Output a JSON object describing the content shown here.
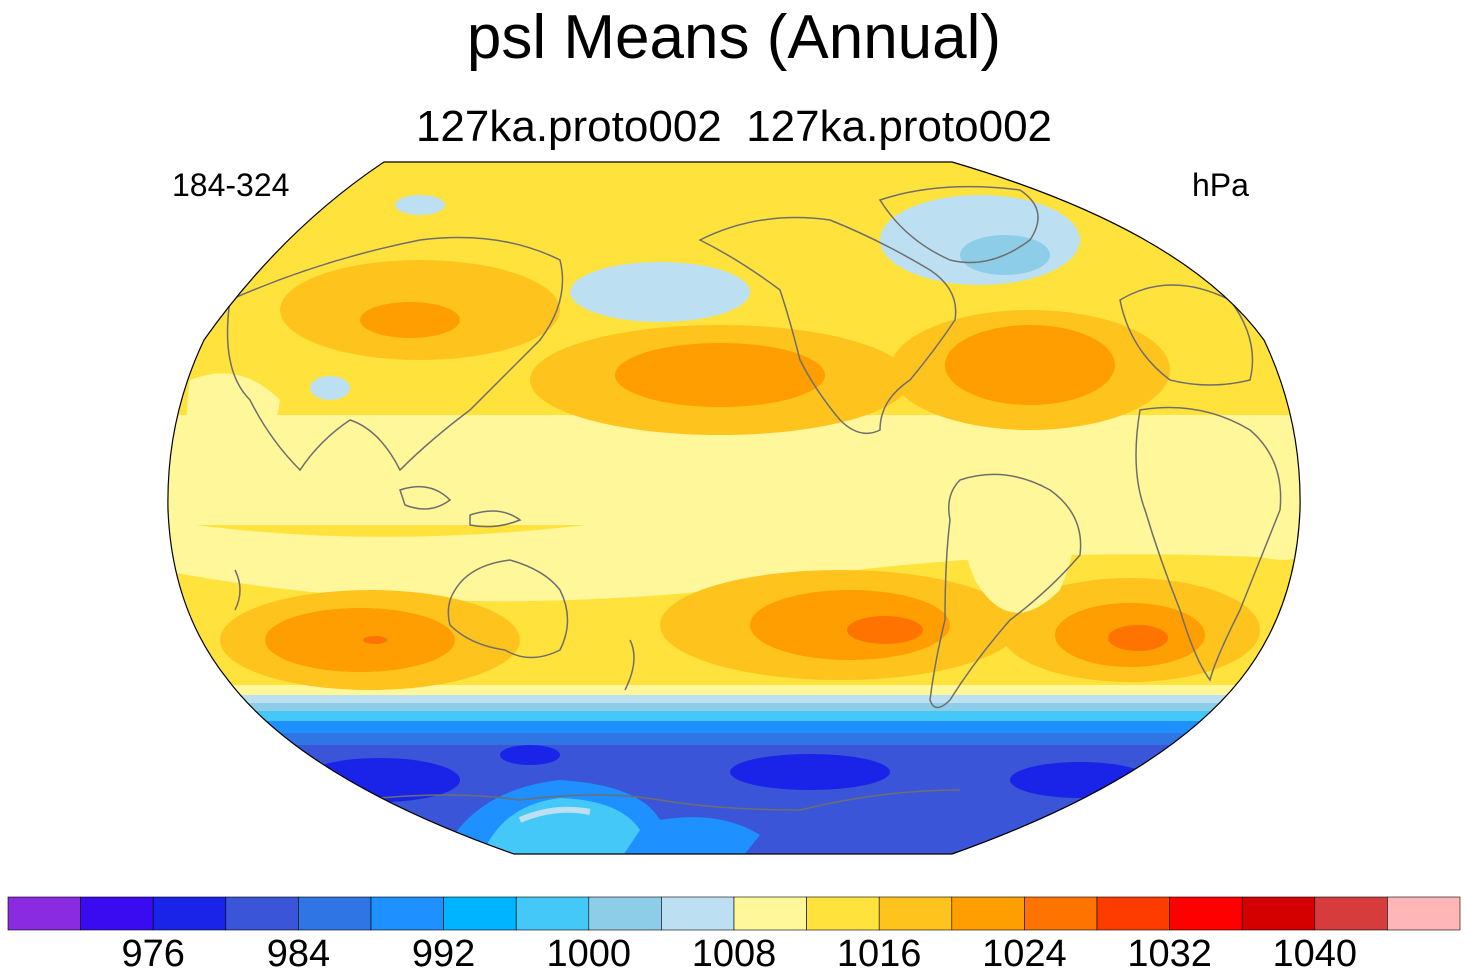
{
  "title": "psl Means (Annual)",
  "subtitle": "127ka.proto002  127ka.proto002",
  "left_label": "184-324",
  "right_label": "hPa",
  "map": {
    "projection": "robinson",
    "central_longitude": 180,
    "variable": "psl",
    "units": "hPa",
    "coastlines": true
  },
  "colorbar": {
    "colors": [
      "#8a2be2",
      "#3a0af0",
      "#1a23e8",
      "#3a55d8",
      "#3075e4",
      "#1e90ff",
      "#00b4ff",
      "#44c8f8",
      "#8ecde8",
      "#bce0f2",
      "#fff799",
      "#ffe23c",
      "#ffc31e",
      "#ff9e00",
      "#ff7400",
      "#ff3c00",
      "#ff0000",
      "#d40000",
      "#d63c3c",
      "#ffb6b6"
    ],
    "tick_labels": [
      "976",
      "984",
      "992",
      "1000",
      "1008",
      "1016",
      "1024",
      "1032",
      "1040"
    ]
  }
}
